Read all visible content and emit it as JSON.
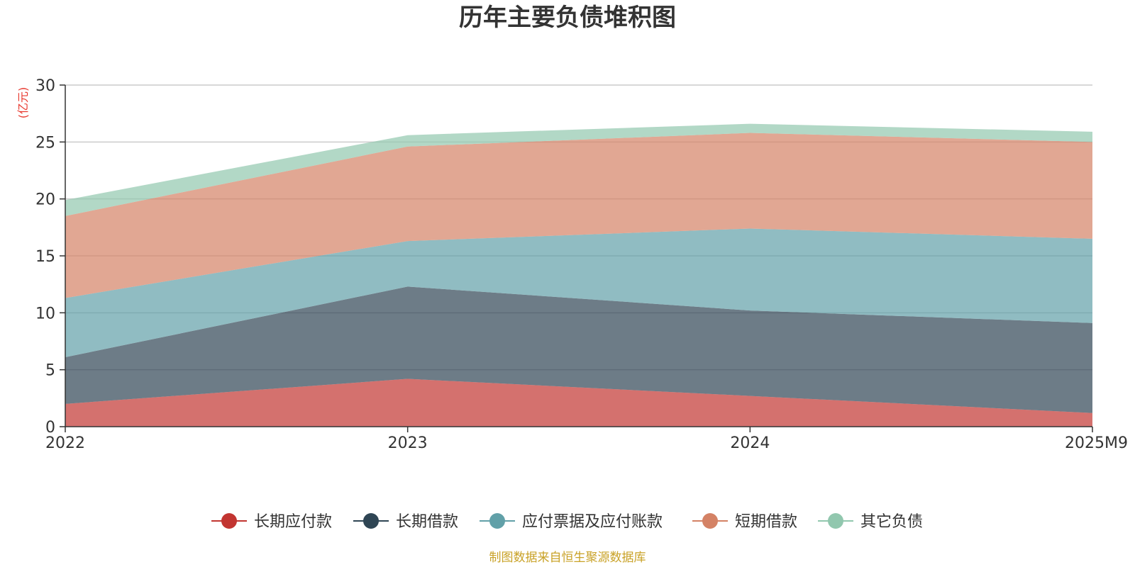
{
  "chart_data": {
    "type": "area",
    "stacked": true,
    "title": "历年主要负债堆积图",
    "unit_label": "(亿元)",
    "categories": [
      "2022",
      "2023",
      "2024",
      "2025M9"
    ],
    "ylim": [
      0,
      30
    ],
    "yticks": [
      0,
      5,
      10,
      15,
      20,
      25,
      30
    ],
    "grid": true,
    "legend_position": "bottom",
    "series": [
      {
        "name": "长期应付款",
        "color": "#c23531",
        "values": [
          2.0,
          4.2,
          2.7,
          1.2
        ]
      },
      {
        "name": "长期借款",
        "color": "#2f4554",
        "values": [
          4.1,
          8.1,
          7.5,
          7.9
        ]
      },
      {
        "name": "应付票据及应付账款",
        "color": "#61a0a8",
        "values": [
          5.2,
          4.0,
          7.2,
          7.4
        ]
      },
      {
        "name": "短期借款",
        "color": "#d48265",
        "values": [
          7.2,
          8.3,
          8.4,
          8.5
        ]
      },
      {
        "name": "其它负债",
        "color": "#91c7ae",
        "values": [
          1.4,
          1.0,
          0.8,
          0.9
        ]
      }
    ]
  },
  "source_note": "制图数据来自恒生聚源数据库"
}
